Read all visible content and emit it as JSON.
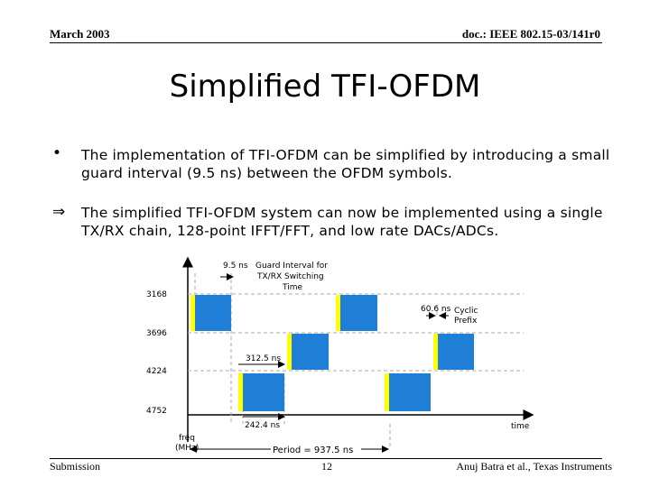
{
  "header": {
    "date": "March 2003",
    "doc_id": "doc.: IEEE 802.15-03/141r0"
  },
  "title": "Simplified TFI-OFDM",
  "bullets": [
    {
      "marker": "•",
      "text": "The implementation of TFI-OFDM can be simplified by introducing a small guard interval (9.5 ns) between the OFDM symbols."
    },
    {
      "marker": "⇒",
      "text": "The simplified TFI-OFDM system can now be implemented using a single TX/RX chain, 128-point IFFT/FFT, and low rate DACs/ADCs."
    }
  ],
  "diagram": {
    "y_axis_label_line1": "freq",
    "y_axis_label_line2": "(MHz)",
    "x_axis_label": "time",
    "frequencies": [
      "3168",
      "3696",
      "4224",
      "4752"
    ],
    "annotations": {
      "guard_value": "9.5 ns",
      "guard_label_line1": "Guard Interval for",
      "guard_label_line2": "TX/RX Switching",
      "guard_label_line3": "Time",
      "cp_value": "60.6 ns",
      "cp_label_line1": "Cyclic",
      "cp_label_line2": "Prefix",
      "symbol_value": "312.5 ns",
      "data_value": "242.4 ns",
      "period": "Period = 937.5 ns"
    },
    "colors": {
      "symbol": "#1f7fd6",
      "prefix": "#ffff00",
      "dash": "#aaaaaa"
    }
  },
  "footer": {
    "left": "Submission",
    "page": "12",
    "right": "Anuj Batra et al., Texas Instruments"
  }
}
